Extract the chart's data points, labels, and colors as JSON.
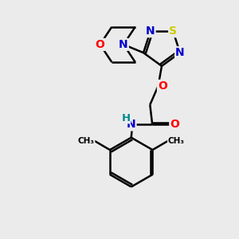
{
  "bg_color": "#ebebeb",
  "atom_colors": {
    "C": "#000000",
    "N": "#0000cc",
    "O": "#ff0000",
    "S": "#cccc00",
    "H": "#008b8b"
  },
  "bond_color": "#000000",
  "bond_width": 1.8
}
